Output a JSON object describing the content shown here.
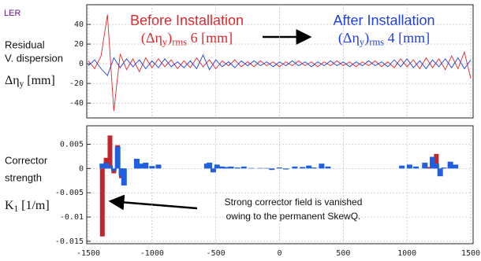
{
  "chart_data": [
    {
      "type": "line",
      "corner_label": "LER",
      "ylabel_lines": [
        "Residual",
        "V. dispersion"
      ],
      "ylabel_math": [
        {
          "text": "Δη"
        },
        {
          "text": "y",
          "sub": true
        },
        {
          "text": " [mm]"
        }
      ],
      "titles": [
        {
          "lines": [
            {
              "text": "Before Installation"
            },
            {
              "parts": [
                {
                  "text": "(Δη"
                },
                {
                  "text": "y",
                  "sub": true
                },
                {
                  "text": ")"
                },
                {
                  "text": "rms",
                  "sub": true
                },
                {
                  "text": " 6 [mm]"
                }
              ]
            }
          ],
          "color": "#e0262b"
        },
        {
          "lines": [
            {
              "text": "After Installation"
            },
            {
              "parts": [
                {
                  "text": "(Δη"
                },
                {
                  "text": "y",
                  "sub": true
                },
                {
                  "text": ")"
                },
                {
                  "text": "rms",
                  "sub": true
                },
                {
                  "text": " 4 [mm]"
                }
              ]
            }
          ],
          "color": "#1f3fe0"
        }
      ],
      "x": [
        -1500,
        -1450,
        -1400,
        -1350,
        -1300,
        -1250,
        -1200,
        -1150,
        -1100,
        -1050,
        -1000,
        -950,
        -900,
        -850,
        -800,
        -750,
        -700,
        -650,
        -600,
        -550,
        -500,
        -450,
        -400,
        -350,
        -300,
        -250,
        -200,
        -150,
        -100,
        -50,
        0,
        50,
        100,
        150,
        200,
        250,
        300,
        350,
        400,
        450,
        500,
        550,
        600,
        650,
        700,
        750,
        800,
        850,
        900,
        950,
        1000,
        1050,
        1100,
        1150,
        1200,
        1250,
        1300,
        1350,
        1400,
        1450,
        1500
      ],
      "series": [
        {
          "color": "#e0262b",
          "values": [
            3,
            -5,
            8,
            50,
            -48,
            10,
            -6,
            5,
            -8,
            6,
            -4,
            5,
            -3,
            4,
            -5,
            3,
            -4,
            6,
            -3,
            4,
            -5,
            3,
            -2,
            4,
            -3,
            2,
            -3,
            3,
            -2,
            2,
            -3,
            2,
            -2,
            3,
            -2,
            2,
            -3,
            2,
            -2,
            3,
            -2,
            2,
            -3,
            2,
            -2,
            3,
            -3,
            2,
            -4,
            5,
            -3,
            4,
            -5,
            6,
            -4,
            5,
            -6,
            8,
            -5,
            12,
            -15
          ]
        },
        {
          "color": "#1f3fe0",
          "values": [
            -2,
            4,
            -5,
            -12,
            6,
            -4,
            5,
            -3,
            4,
            -5,
            3,
            -4,
            5,
            -3,
            2,
            -4,
            3,
            -5,
            9,
            -6,
            4,
            -3,
            2,
            -4,
            3,
            -2,
            3,
            -2,
            2,
            -3,
            2,
            -2,
            3,
            -2,
            2,
            -3,
            2,
            -2,
            3,
            -2,
            2,
            -3,
            2,
            -2,
            3,
            -2,
            2,
            -3,
            4,
            -3,
            5,
            -4,
            3,
            -5,
            4,
            -3,
            5,
            -4,
            6,
            -5,
            4
          ]
        }
      ],
      "xlim": [
        -1500,
        1500
      ],
      "xticks": [
        -1500,
        -1000,
        -500,
        0,
        500,
        1000,
        1500
      ],
      "ylim": [
        -55,
        60
      ],
      "yticks": [
        40,
        20,
        0,
        -20,
        -40
      ],
      "grid": true
    },
    {
      "type": "bar",
      "ylabel_lines": [
        "Corrector",
        "strength"
      ],
      "ylabel_math": [
        {
          "text": "K"
        },
        {
          "text": "1",
          "sub": true
        },
        {
          "text": " [1/m]"
        }
      ],
      "note_lines": [
        "Strong corrector field is vanished",
        "owing to the permanent SkewQ."
      ],
      "x": [
        -1390,
        -1360,
        -1330,
        -1300,
        -1270,
        -1240,
        -1220,
        -1120,
        -1090,
        -1050,
        -1000,
        -950,
        -570,
        -550,
        -520,
        -490,
        -450,
        -420,
        -380,
        -330,
        -280,
        -220,
        -150,
        -100,
        -60,
        0,
        50,
        120,
        180,
        230,
        270,
        330,
        380,
        960,
        1020,
        1070,
        1140,
        1170,
        1200,
        1230,
        1260,
        1290,
        1340,
        1380
      ],
      "series": [
        {
          "color": "#c0262b",
          "values": [
            -0.014,
            0.0022,
            0.0068,
            -0.001,
            0.0048,
            -0.002,
            -0.002,
            0.0008,
            null,
            0.001,
            null,
            null,
            null,
            null,
            null,
            null,
            null,
            null,
            null,
            null,
            null,
            null,
            null,
            null,
            null,
            null,
            null,
            null,
            null,
            null,
            null,
            null,
            null,
            null,
            null,
            null,
            null,
            0.0003,
            null,
            0.003,
            null,
            null,
            null,
            null
          ]
        },
        {
          "color": "#1f5fe0",
          "values": [
            0.001,
            0.0012,
            0.0006,
            -0.0005,
            0.0045,
            -0.0015,
            -0.0035,
            0.002,
            0.001,
            0.0012,
            0.0005,
            0.0008,
            0.001,
            0.0012,
            -0.0008,
            0.0008,
            0.0004,
            0.0003,
            0.0004,
            0.0002,
            0.0004,
            0.0001,
            0.0001,
            0.0001,
            -0.0003,
            0.0002,
            -0.0002,
            0.0004,
            0.0003,
            0.0006,
            0.0002,
            0.001,
            0.0004,
            0.0006,
            0.0008,
            0.0004,
            0.0012,
            null,
            0.0024,
            0.001,
            -0.0016,
            0.0002,
            0.0014,
            0.0008
          ]
        }
      ],
      "xlim": [
        -1500,
        1500
      ],
      "xticks": [
        -1500,
        -1000,
        -500,
        0,
        500,
        1000,
        1500
      ],
      "ylim": [
        -0.0155,
        0.0088
      ],
      "yticks": [
        0.005,
        0,
        -0.005,
        -0.01,
        -0.015
      ],
      "grid": true
    }
  ]
}
